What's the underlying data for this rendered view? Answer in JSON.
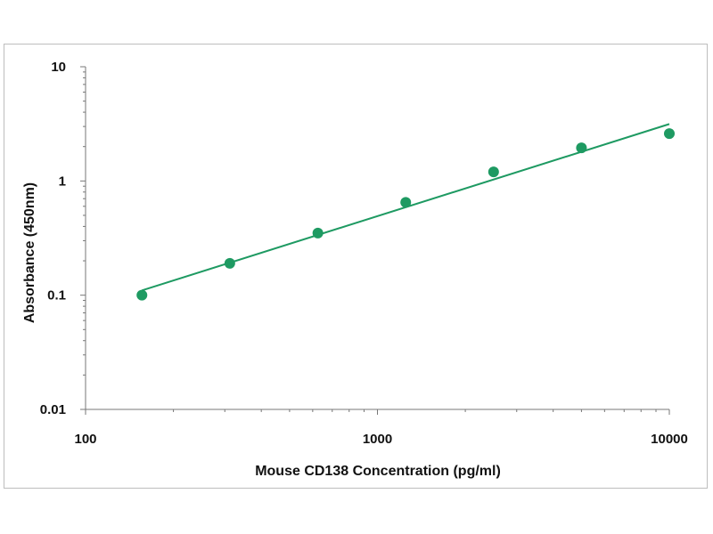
{
  "chart_data": {
    "type": "scatter",
    "xlabel": "Mouse CD138 Concentration (pg/ml)",
    "ylabel": "Absorbance (450nm)",
    "x_scale": "log",
    "y_scale": "log",
    "xlim": [
      100,
      10000
    ],
    "ylim": [
      0.01,
      10
    ],
    "x_ticks": [
      100,
      1000,
      10000
    ],
    "x_tick_labels": [
      "100",
      "1000",
      "10000"
    ],
    "y_ticks": [
      0.01,
      0.1,
      1,
      10
    ],
    "y_tick_labels": [
      "0.01",
      "0.1",
      "1",
      "10"
    ],
    "grid": false,
    "legend": "none",
    "series": [
      {
        "points": [
          {
            "x": 156,
            "y": 0.1
          },
          {
            "x": 312,
            "y": 0.19
          },
          {
            "x": 625,
            "y": 0.35
          },
          {
            "x": 1250,
            "y": 0.65
          },
          {
            "x": 2500,
            "y": 1.2
          },
          {
            "x": 5000,
            "y": 1.95
          },
          {
            "x": 10000,
            "y": 2.6
          }
        ]
      }
    ],
    "fit_line": {
      "x": [
        156,
        10000
      ],
      "y": [
        0.11,
        3.15
      ]
    },
    "color": "#1e9a62"
  }
}
